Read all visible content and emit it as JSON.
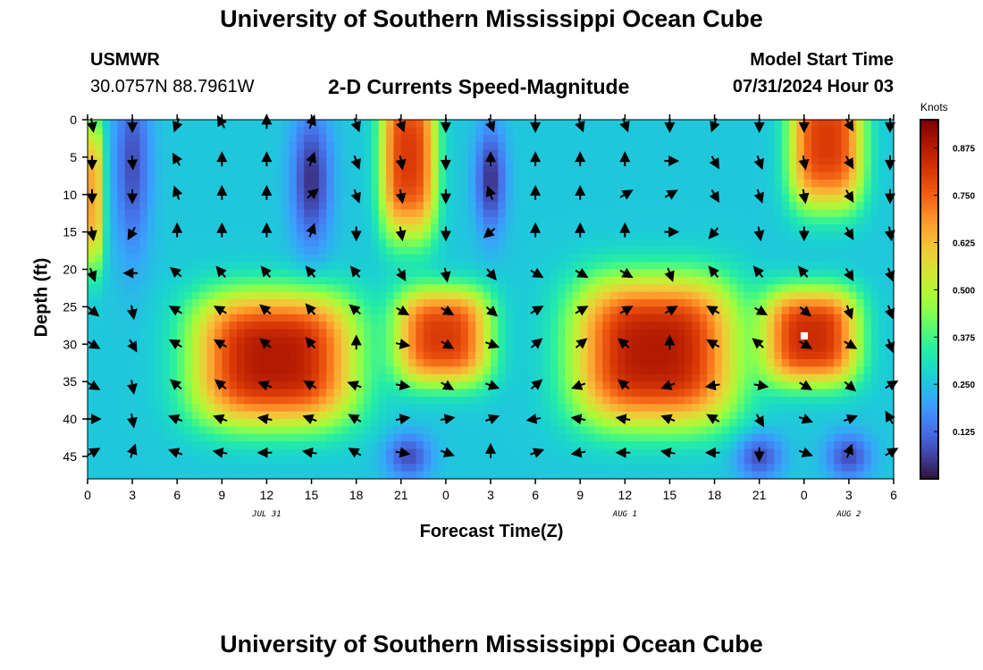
{
  "header": {
    "title": "University of Southern Mississippi Ocean Cube",
    "station_id": "USMWR",
    "station_coords": "30.0757N  88.7961W",
    "subtitle": "2-D Currents Speed-Magnitude",
    "model_start_label": "Model Start Time",
    "model_start_time": "07/31/2024 Hour 03"
  },
  "footer": {
    "title": "University of Southern Mississippi Ocean Cube"
  },
  "chart_data": {
    "type": "heatmap",
    "title": "2-D Currents Speed-Magnitude",
    "xlabel": "Forecast Time(Z)",
    "ylabel": "Depth (ft)",
    "x_range_hours": [
      0,
      54
    ],
    "y_range_ft": [
      0,
      48
    ],
    "x_tick_hours": [
      0,
      3,
      6,
      9,
      12,
      15,
      18,
      21,
      24,
      27,
      30,
      33,
      36,
      39,
      42,
      45,
      48,
      51,
      54
    ],
    "x_tick_labels": [
      "0",
      "3",
      "6",
      "9",
      "12",
      "15",
      "18",
      "21",
      "0",
      "3",
      "6",
      "9",
      "12",
      "15",
      "18",
      "21",
      "0",
      "3",
      "6"
    ],
    "y_ticks": [
      0,
      5,
      10,
      15,
      20,
      25,
      30,
      35,
      40,
      45
    ],
    "date_labels": [
      {
        "text": "JUL 31",
        "hour": 12
      },
      {
        "text": "AUG 1",
        "hour": 36
      },
      {
        "text": "AUG 2",
        "hour": 51
      }
    ],
    "colorbar": {
      "title": "Knots",
      "range": [
        0.0,
        0.95
      ],
      "ticks": [
        0.125,
        0.25,
        0.375,
        0.5,
        0.625,
        0.75,
        0.875
      ],
      "tick_labels": [
        "0.125",
        "0.250",
        "0.375",
        "0.500",
        "0.625",
        "0.750",
        "0.875"
      ],
      "colors": [
        "#30123b",
        "#4145ab",
        "#4675ed",
        "#39a2fc",
        "#1bcfd4",
        "#24eca6",
        "#61fc6c",
        "#a4fc3b",
        "#d1e834",
        "#f3c63a",
        "#fe9b2d",
        "#f36315",
        "#d93806",
        "#b11901",
        "#7a0402"
      ]
    },
    "speed_blobs_knots": [
      {
        "hour": 12.5,
        "depth_ft": 32,
        "hour_spread": 5.5,
        "depth_spread": 9,
        "amp": 0.62
      },
      {
        "hour": 23.8,
        "depth_ft": 29,
        "hour_spread": 3.2,
        "depth_spread": 6.5,
        "amp": 0.55
      },
      {
        "hour": 38,
        "depth_ft": 31,
        "hour_spread": 5.5,
        "depth_spread": 10,
        "amp": 0.62
      },
      {
        "hour": 48.5,
        "depth_ft": 29,
        "hour_spread": 3.2,
        "depth_spread": 6.5,
        "amp": 0.58
      },
      {
        "hour": 21.5,
        "depth_ft": 5,
        "hour_spread": 1.9,
        "depth_spread": 11,
        "amp": 0.55
      },
      {
        "hour": 49.5,
        "depth_ft": 3,
        "hour_spread": 2.5,
        "depth_spread": 9,
        "amp": 0.55
      },
      {
        "hour": 0.3,
        "depth_ft": 10,
        "hour_spread": 0.8,
        "depth_spread": 10,
        "amp": 0.4
      }
    ],
    "speed_lows_knots": [
      {
        "hour": 15,
        "depth_ft": 8,
        "hour_spread": 1.3,
        "depth_spread": 9,
        "amp": 0.22
      },
      {
        "hour": 27,
        "depth_ft": 8,
        "hour_spread": 1,
        "depth_spread": 7,
        "amp": 0.22
      },
      {
        "hour": 3,
        "depth_ft": 6,
        "hour_spread": 1.2,
        "depth_spread": 12,
        "amp": 0.18
      },
      {
        "hour": 21.5,
        "depth_ft": 45,
        "hour_spread": 1.5,
        "depth_spread": 3,
        "amp": 0.18
      },
      {
        "hour": 45,
        "depth_ft": 45,
        "hour_spread": 1.5,
        "depth_spread": 3,
        "amp": 0.18
      },
      {
        "hour": 51,
        "depth_ft": 45,
        "hour_spread": 1.5,
        "depth_spread": 3,
        "amp": 0.18
      }
    ],
    "vector_grid_hours": [
      0,
      3,
      6,
      9,
      12,
      15,
      18,
      21,
      24,
      27,
      30,
      33,
      36,
      39,
      42,
      45,
      48,
      51,
      54
    ],
    "vector_grid_depths_ft": [
      0.5,
      5.5,
      10,
      15,
      20.5,
      25.5,
      30,
      35.5,
      40,
      44.5
    ],
    "vector_directions_deg": [
      [
        170,
        180,
        200,
        330,
        0,
        20,
        160,
        160,
        180,
        160,
        180,
        160,
        160,
        180,
        200,
        180,
        180,
        150,
        180
      ],
      [
        180,
        175,
        330,
        0,
        0,
        20,
        160,
        170,
        180,
        0,
        0,
        0,
        0,
        90,
        150,
        160,
        170,
        150,
        180
      ],
      [
        180,
        180,
        340,
        0,
        0,
        50,
        160,
        170,
        180,
        340,
        0,
        0,
        60,
        60,
        150,
        160,
        170,
        150,
        180
      ],
      [
        170,
        210,
        0,
        0,
        0,
        20,
        180,
        170,
        180,
        230,
        0,
        0,
        0,
        90,
        220,
        170,
        180,
        150,
        170
      ],
      [
        160,
        270,
        310,
        320,
        320,
        320,
        320,
        150,
        170,
        140,
        120,
        120,
        120,
        160,
        320,
        320,
        320,
        150,
        160
      ],
      [
        130,
        170,
        300,
        300,
        310,
        320,
        310,
        120,
        120,
        130,
        60,
        60,
        60,
        60,
        300,
        120,
        130,
        160,
        160
      ],
      [
        120,
        150,
        300,
        300,
        310,
        320,
        0,
        100,
        120,
        110,
        50,
        50,
        310,
        0,
        300,
        310,
        120,
        120,
        160
      ],
      [
        120,
        170,
        310,
        310,
        290,
        300,
        290,
        100,
        120,
        110,
        50,
        250,
        310,
        250,
        260,
        100,
        120,
        130,
        60
      ],
      [
        90,
        170,
        290,
        290,
        280,
        290,
        300,
        80,
        80,
        70,
        260,
        280,
        280,
        290,
        300,
        150,
        110,
        70,
        330
      ],
      [
        60,
        20,
        290,
        280,
        270,
        280,
        300,
        100,
        110,
        0,
        70,
        260,
        270,
        280,
        270,
        180,
        110,
        20,
        60
      ]
    ]
  }
}
